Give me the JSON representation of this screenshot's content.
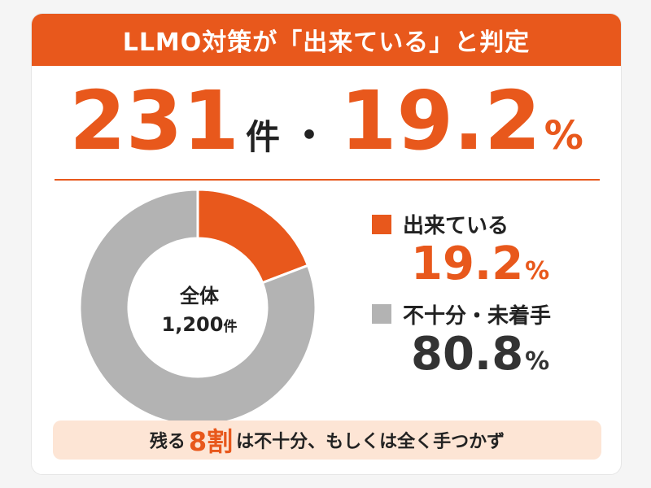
{
  "colors": {
    "accent": "#e8581c",
    "gray": "#b3b3b3",
    "text": "#222222",
    "footer_bg": "#fde5d5"
  },
  "title": "LLMO対策が「出来ている」と判定",
  "headline": {
    "count": "231",
    "count_unit": "件",
    "separator": "・",
    "percent": "19.2",
    "percent_unit": "%"
  },
  "donut_center": {
    "title": "全体",
    "value": "1,200",
    "unit": "件"
  },
  "legend": [
    {
      "label": "出来ている",
      "value": "19.2",
      "unit": "%",
      "color": "#e8581c",
      "value_color": "#e8581c"
    },
    {
      "label": "不十分・未着手",
      "value": "80.8",
      "unit": "%",
      "color": "#b3b3b3",
      "value_color": "#333333"
    }
  ],
  "footer": {
    "prefix": "残る",
    "emphasis": "8割",
    "suffix": "は不十分、もしくは全く手つかず"
  },
  "chart_data": {
    "type": "pie",
    "categories": [
      "出来ている",
      "不十分・未着手"
    ],
    "values": [
      19.2,
      80.8
    ],
    "total": 1200,
    "colors": [
      "#e8581c",
      "#b3b3b3"
    ]
  }
}
